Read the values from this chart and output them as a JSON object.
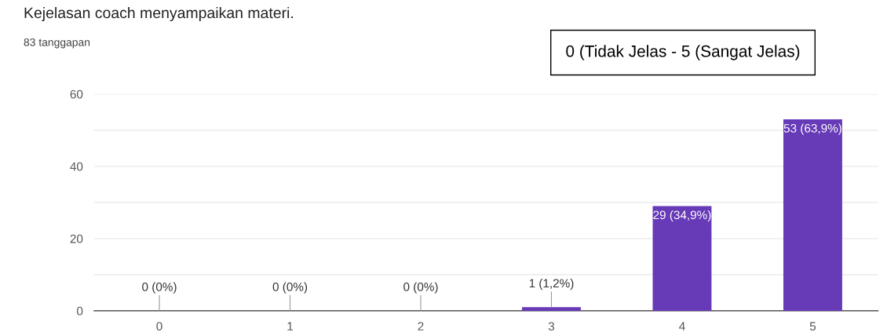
{
  "chart_data": {
    "type": "bar",
    "title": "Kejelasan coach menyampaikan materi.",
    "subtitle": "83 tanggapan",
    "annotations": [
      "0 (Tidak Jelas - 5 (Sangat Jelas)"
    ],
    "categories": [
      "0",
      "1",
      "2",
      "3",
      "4",
      "5"
    ],
    "values": [
      0,
      0,
      0,
      1,
      29,
      53
    ],
    "value_labels": [
      "0 (0%)",
      "0 (0%)",
      "0 (0%)",
      "1 (1,2%)",
      "29 (34,9%)",
      "53 (63,9%)"
    ],
    "color": "#673ab7",
    "ylim": [
      0,
      60
    ],
    "yticks": [
      0,
      {
        "value": 10,
        "label": null
      },
      20,
      {
        "value": 30,
        "label": null
      },
      40,
      {
        "value": 50,
        "label": null
      },
      60
    ],
    "grid": "y"
  }
}
